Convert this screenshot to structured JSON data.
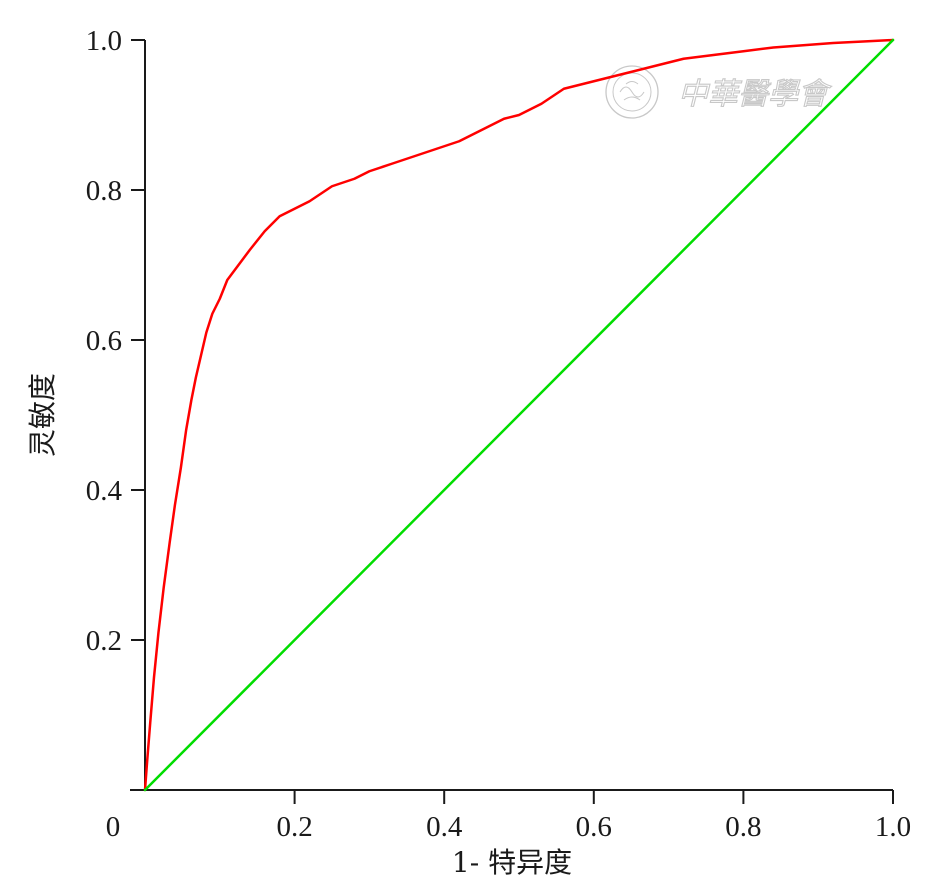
{
  "chart_data": {
    "type": "line",
    "title": "",
    "xlabel": "1- 特异度",
    "ylabel": "灵敏度",
    "xlim": [
      0,
      1.0
    ],
    "ylim": [
      0,
      1.0
    ],
    "xticks": [
      0,
      0.2,
      0.4,
      0.6,
      0.8,
      1.0
    ],
    "xtick_labels": [
      "0",
      "0.2",
      "0.4",
      "0.6",
      "0.8",
      "1.0"
    ],
    "yticks": [
      0.2,
      0.4,
      0.6,
      0.8,
      1.0
    ],
    "ytick_labels": [
      "0.2",
      "0.4",
      "0.6",
      "0.8",
      "1.0"
    ],
    "grid": false,
    "series": [
      {
        "color": "#ff0000",
        "x": [
          0,
          0.003,
          0.007,
          0.012,
          0.018,
          0.025,
          0.033,
          0.04,
          0.048,
          0.055,
          0.062,
          0.068,
          0.075,
          0.082,
          0.09,
          0.1,
          0.11,
          0.125,
          0.14,
          0.16,
          0.18,
          0.2,
          0.22,
          0.25,
          0.28,
          0.3,
          0.33,
          0.36,
          0.39,
          0.42,
          0.45,
          0.48,
          0.5,
          0.53,
          0.56,
          0.6,
          0.64,
          0.68,
          0.72,
          0.76,
          0.8,
          0.84,
          0.88,
          0.92,
          0.96,
          1.0
        ],
        "y": [
          0,
          0.04,
          0.09,
          0.15,
          0.21,
          0.27,
          0.33,
          0.38,
          0.43,
          0.48,
          0.52,
          0.55,
          0.58,
          0.61,
          0.635,
          0.655,
          0.68,
          0.7,
          0.72,
          0.745,
          0.765,
          0.775,
          0.785,
          0.805,
          0.815,
          0.825,
          0.835,
          0.845,
          0.855,
          0.865,
          0.88,
          0.895,
          0.9,
          0.915,
          0.935,
          0.945,
          0.955,
          0.965,
          0.975,
          0.98,
          0.985,
          0.99,
          0.993,
          0.996,
          0.998,
          1.0
        ]
      },
      {
        "color": "#00dd00",
        "x": [
          0,
          1.0
        ],
        "y": [
          0,
          1.0
        ]
      }
    ]
  },
  "watermark": {
    "text": "中華醫學會",
    "color": "#c8c8c8"
  }
}
